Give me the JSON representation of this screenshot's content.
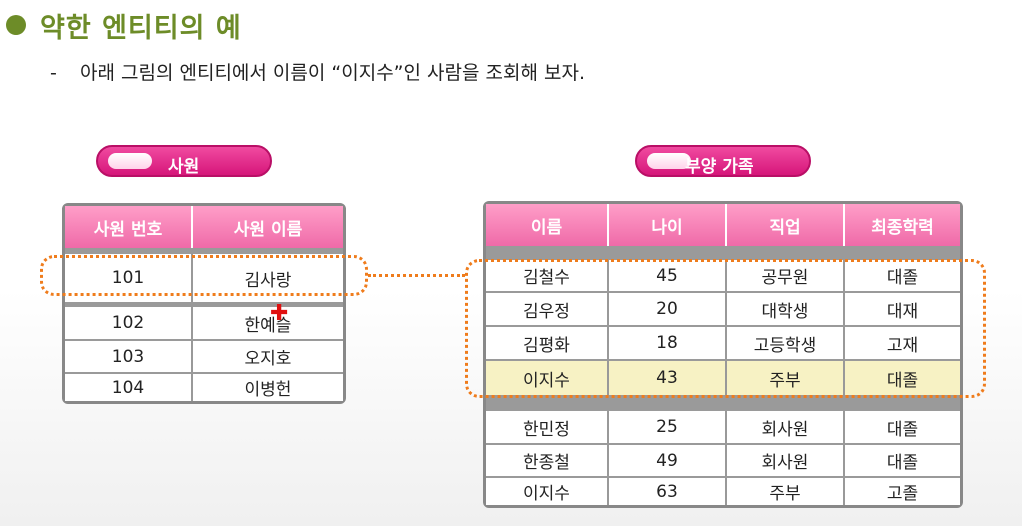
{
  "title": "약한 엔티티의 예",
  "subtitle": {
    "dash": "-",
    "text": "아래 그림의 엔티티에서 이름이 “이지수”인 사람을 조회해 보자."
  },
  "employee_table": {
    "label": "사원",
    "headers": [
      "사원 번호",
      "사원 이름"
    ],
    "rows": [
      [
        "101",
        "김사랑"
      ],
      [
        "102",
        "한예슬"
      ],
      [
        "103",
        "오지호"
      ],
      [
        "104",
        "이병헌"
      ]
    ]
  },
  "family_table": {
    "label": "부양 가족",
    "headers": [
      "이름",
      "나이",
      "직업",
      "최종학력"
    ],
    "rows": [
      [
        "김철수",
        "45",
        "공무원",
        "대졸"
      ],
      [
        "김우정",
        "20",
        "대학생",
        "대재"
      ],
      [
        "김평화",
        "18",
        "고등학생",
        "고재"
      ],
      [
        "이지수",
        "43",
        "주부",
        "대졸"
      ],
      [
        "한민정",
        "25",
        "회사원",
        "대졸"
      ],
      [
        "한종철",
        "49",
        "회사원",
        "대졸"
      ],
      [
        "이지수",
        "63",
        "주부",
        "고졸"
      ]
    ],
    "highlighted_row": 3
  },
  "colors": {
    "title": "#6d8c28",
    "pill": "#e0208a",
    "header": "#ef6aa8",
    "highlight": "#f7f2c4",
    "dotted": "#ef7c1c",
    "cursor": "#e01010"
  },
  "icons": {
    "title_bullet": "green-circle-bullet",
    "cursor": "red-cross-cursor"
  }
}
